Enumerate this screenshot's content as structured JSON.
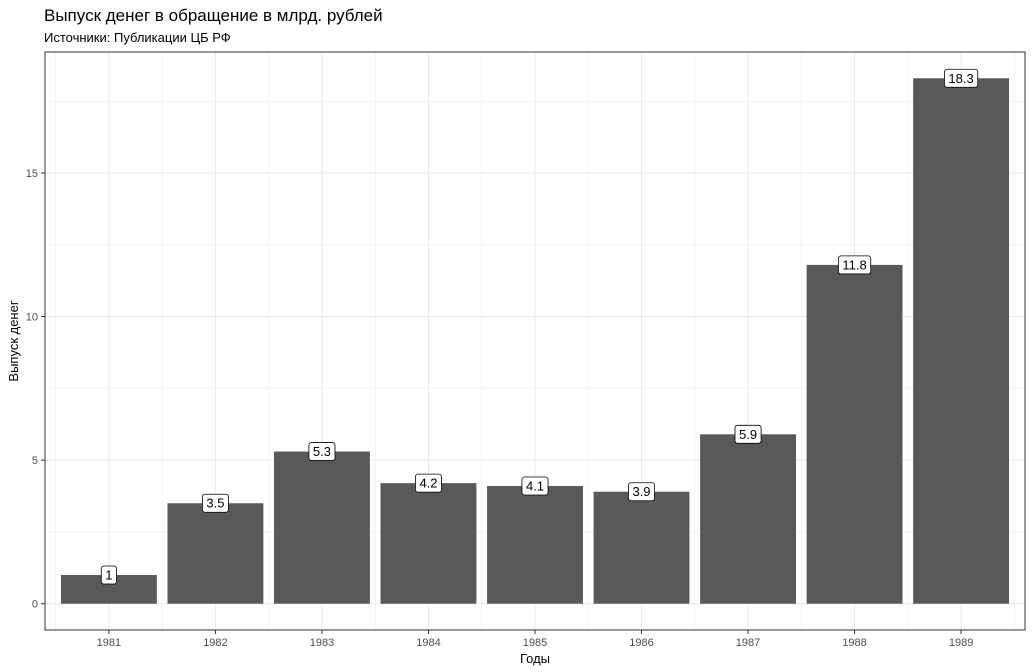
{
  "chart_data": {
    "type": "bar",
    "title": "Выпуск денег в обращение в млрд. рублей",
    "subtitle": "Источники: Публикации ЦБ РФ",
    "xlabel": "Годы",
    "ylabel": "Выпуск денег",
    "categories": [
      "1981",
      "1982",
      "1983",
      "1984",
      "1985",
      "1986",
      "1987",
      "1988",
      "1989"
    ],
    "values": [
      1,
      3.5,
      5.3,
      4.2,
      4.1,
      3.9,
      5.9,
      11.8,
      18.3
    ],
    "data_labels": [
      "1",
      "3.5",
      "5.3",
      "4.2",
      "4.1",
      "3.9",
      "5.9",
      "11.8",
      "18.3"
    ],
    "y_ticks": [
      0,
      5,
      10,
      15
    ],
    "y_tick_labels": [
      "0",
      "5",
      "10",
      "15"
    ],
    "ylim": [
      -0.915,
      19.215
    ],
    "grid": true,
    "bar_color": "#595959",
    "grid_color": "#ebebeb",
    "panel_border_color": "#333333"
  }
}
